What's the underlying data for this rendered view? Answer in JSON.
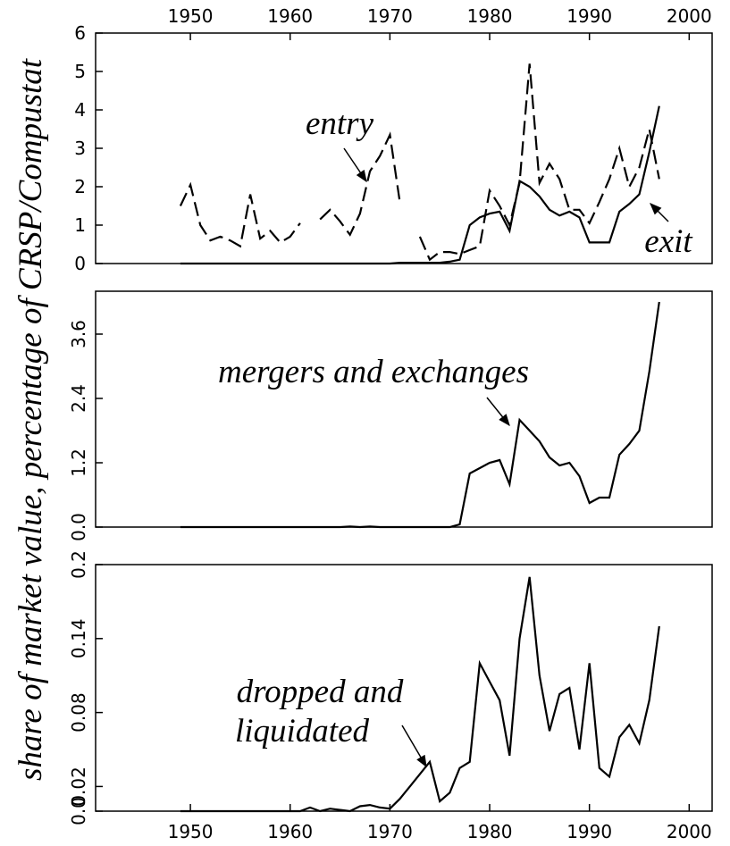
{
  "ylabel": "share of market value, percentage of CRSP/Compustat",
  "chart_data": [
    {
      "type": "line",
      "x": [
        1949,
        1950,
        1951,
        1952,
        1953,
        1954,
        1955,
        1956,
        1957,
        1958,
        1959,
        1960,
        1961,
        1962,
        1963,
        1964,
        1965,
        1966,
        1967,
        1968,
        1969,
        1970,
        1971,
        1972,
        1973,
        1974,
        1975,
        1976,
        1977,
        1978,
        1979,
        1980,
        1981,
        1982,
        1983,
        1984,
        1985,
        1986,
        1987,
        1988,
        1989,
        1990,
        1991,
        1992,
        1993,
        1994,
        1995,
        1996,
        1997
      ],
      "series": [
        {
          "name": "entry",
          "color": "#000000",
          "dash": true,
          "values": [
            1.5,
            2.05,
            1.0,
            0.6,
            0.7,
            0.6,
            0.45,
            1.8,
            0.65,
            0.85,
            0.55,
            0.7,
            1.05,
            null,
            1.15,
            1.4,
            1.1,
            0.75,
            1.3,
            2.4,
            2.8,
            3.35,
            1.6,
            null,
            0.7,
            0.1,
            0.3,
            0.3,
            0.25,
            0.35,
            0.45,
            1.9,
            1.5,
            1.0,
            2.1,
            5.2,
            2.1,
            2.6,
            2.2,
            1.4,
            1.4,
            1.05,
            1.6,
            2.2,
            3.0,
            2.0,
            2.5,
            3.5,
            2.2
          ]
        },
        {
          "name": "exit",
          "color": "#000000",
          "dash": false,
          "values": [
            0,
            0,
            0,
            0,
            0,
            0,
            0,
            0,
            0,
            0,
            0,
            0,
            0,
            0,
            0,
            0,
            0,
            0,
            0,
            0,
            0,
            0,
            0.02,
            0.02,
            0.02,
            0.02,
            0.02,
            0.05,
            0.1,
            1.0,
            1.2,
            1.3,
            1.35,
            0.85,
            2.15,
            2.0,
            1.75,
            1.4,
            1.25,
            1.35,
            1.2,
            0.55,
            0.55,
            0.55,
            1.35,
            1.55,
            1.8,
            2.9,
            4.1
          ]
        }
      ],
      "xlim": [
        1940.5,
        2002.3
      ],
      "xticks": [
        1950,
        1960,
        1970,
        1980,
        1990,
        2000
      ],
      "xaxis": "top",
      "ylim": [
        0,
        6
      ],
      "yticks": [
        0,
        1,
        2,
        3,
        4,
        5,
        6
      ]
    },
    {
      "type": "line",
      "x": [
        1949,
        1950,
        1951,
        1952,
        1953,
        1954,
        1955,
        1956,
        1957,
        1958,
        1959,
        1960,
        1961,
        1962,
        1963,
        1964,
        1965,
        1966,
        1967,
        1968,
        1969,
        1970,
        1971,
        1972,
        1973,
        1974,
        1975,
        1976,
        1977,
        1978,
        1979,
        1980,
        1981,
        1982,
        1983,
        1984,
        1985,
        1986,
        1987,
        1988,
        1989,
        1990,
        1991,
        1992,
        1993,
        1994,
        1995,
        1996,
        1997
      ],
      "series": [
        {
          "name": "mergers and exchanges",
          "color": "#000000",
          "dash": false,
          "values": [
            0,
            0,
            0,
            0,
            0,
            0,
            0,
            0,
            0,
            0,
            0,
            0,
            0,
            0,
            0,
            0,
            0,
            0.01,
            0,
            0.01,
            0,
            0,
            0,
            0,
            0,
            0,
            0,
            0,
            0.05,
            1.0,
            1.1,
            1.2,
            1.25,
            0.8,
            2.0,
            1.8,
            1.6,
            1.3,
            1.15,
            1.2,
            0.95,
            0.45,
            0.55,
            0.55,
            1.35,
            1.55,
            1.8,
            2.9,
            4.2
          ]
        }
      ],
      "xlim": [
        1940.5,
        2002.3
      ],
      "ylim": [
        0,
        4.4
      ],
      "yticks": [
        {
          "value": 0,
          "label": "0.0"
        },
        1.2,
        2.4,
        3.6
      ]
    },
    {
      "type": "line",
      "x": [
        1949,
        1950,
        1951,
        1952,
        1953,
        1954,
        1955,
        1956,
        1957,
        1958,
        1959,
        1960,
        1961,
        1962,
        1963,
        1964,
        1965,
        1966,
        1967,
        1968,
        1969,
        1970,
        1971,
        1972,
        1973,
        1974,
        1975,
        1976,
        1977,
        1978,
        1979,
        1980,
        1981,
        1982,
        1983,
        1984,
        1985,
        1986,
        1987,
        1988,
        1989,
        1990,
        1991,
        1992,
        1993,
        1994,
        1995,
        1996,
        1997
      ],
      "series": [
        {
          "name": "dropped and liquidated",
          "color": "#000000",
          "dash": false,
          "values": [
            0,
            0,
            0,
            0,
            0,
            0,
            0,
            0,
            0,
            0,
            0,
            0,
            0,
            0.003,
            0,
            0.002,
            0.001,
            0,
            0.004,
            0.005,
            0.003,
            0.002,
            0.01,
            0.02,
            0.03,
            0.04,
            0.008,
            0.015,
            0.035,
            0.04,
            0.12,
            0.105,
            0.09,
            0.045,
            0.14,
            0.19,
            0.11,
            0.065,
            0.095,
            0.1,
            0.05,
            0.12,
            0.035,
            0.028,
            0.06,
            0.07,
            0.055,
            0.09,
            0.15
          ]
        }
      ],
      "xlim": [
        1940.5,
        2002.3
      ],
      "xticks": [
        1950,
        1960,
        1970,
        1980,
        1990,
        2000
      ],
      "xaxis": "bottom",
      "ylim": [
        0,
        0.2
      ],
      "yticks": [
        {
          "value": 0,
          "label": "0.0"
        },
        0.02,
        0.08,
        0.14,
        0.2
      ]
    }
  ],
  "annotations": {
    "entry": "entry",
    "exit": "exit",
    "mergers": "mergers and exchanges",
    "dropped": [
      "dropped and",
      "liquidated"
    ]
  }
}
